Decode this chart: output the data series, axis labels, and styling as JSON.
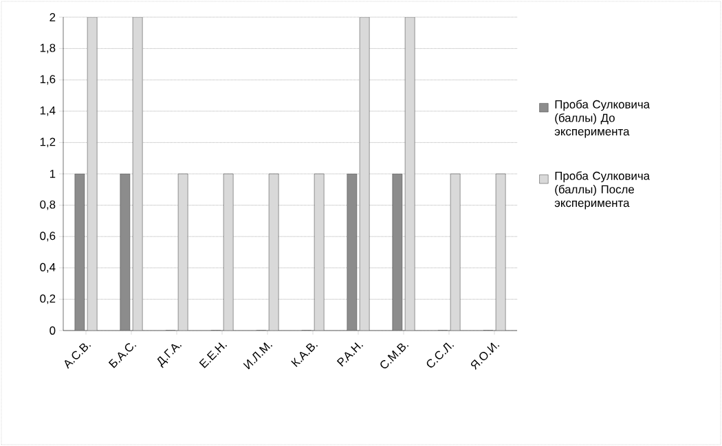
{
  "chart_data": {
    "type": "bar",
    "categories": [
      "А.С.В.",
      "Б.А.С.",
      "Д.Г.А.",
      "Е.Е.Н.",
      "И.Л.М.",
      "К.А.В.",
      "Р.А.Н.",
      "С.М.В.",
      "С.С.Л.",
      "Я.О.И."
    ],
    "series": [
      {
        "name": "Проба Сулковича (баллы) До эксперимента",
        "color": "#8c8c8c",
        "values": [
          1,
          1,
          0,
          0,
          0,
          0,
          1,
          1,
          0,
          0
        ]
      },
      {
        "name": "Проба Сулковича (баллы)  После эксперимента",
        "color": "#d9d9d9",
        "values": [
          2,
          2,
          1,
          1,
          1,
          1,
          2,
          2,
          1,
          1
        ]
      }
    ],
    "ylim": [
      0,
      2
    ],
    "yticks": [
      0,
      {
        "value": 0.2,
        "label": "0,2"
      },
      {
        "value": 0.4,
        "label": "0,4"
      },
      {
        "value": 0.6,
        "label": "0,6"
      },
      {
        "value": 0.8,
        "label": "0,8"
      },
      1,
      {
        "value": 1.2,
        "label": "1,2"
      },
      {
        "value": 1.4,
        "label": "1,4"
      },
      {
        "value": 1.6,
        "label": "1,6"
      },
      {
        "value": 1.8,
        "label": "1,8"
      },
      2
    ],
    "grid": "y",
    "legend": "right"
  }
}
